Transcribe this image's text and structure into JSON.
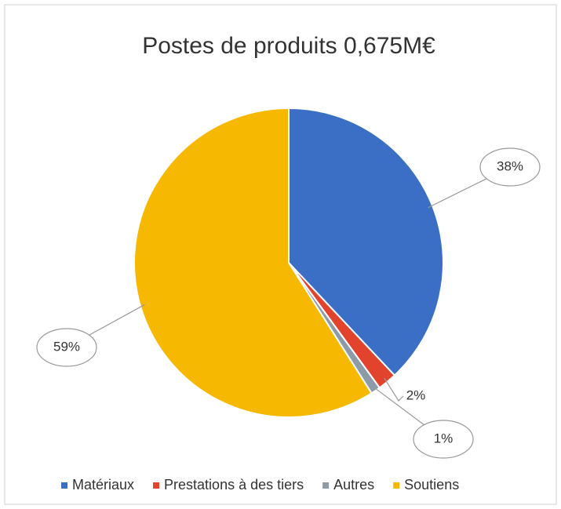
{
  "chart_data": {
    "type": "pie",
    "title": "Postes de produits 0,675M€",
    "categories": [
      "Matériaux",
      "Prestations à des tiers",
      "Autres",
      "Soutiens"
    ],
    "values": [
      38,
      2,
      1,
      59
    ],
    "value_labels": [
      "38%",
      "2%",
      "1%",
      "59%"
    ],
    "colors": [
      "#3b6fc6",
      "#e2432c",
      "#8d9ba8",
      "#f6b800"
    ],
    "legend": "bottom"
  }
}
